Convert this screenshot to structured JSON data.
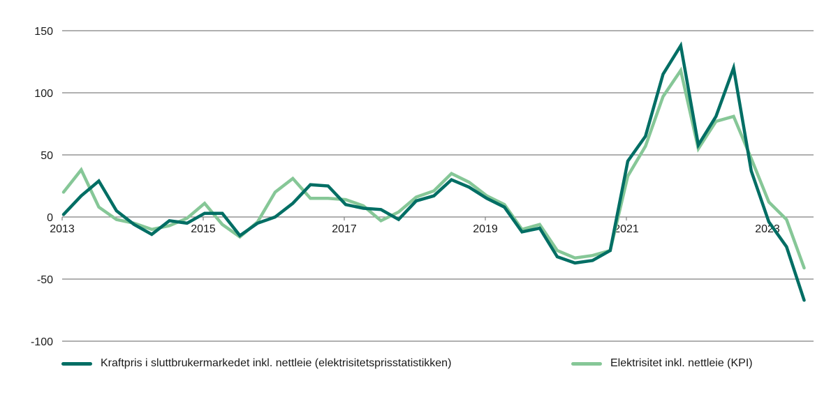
{
  "chart_data": {
    "type": "line",
    "title": "",
    "xlabel": "",
    "ylabel": "",
    "ylim": [
      -100,
      150
    ],
    "yticks": [
      150,
      100,
      50,
      0,
      -50,
      -100
    ],
    "xtick_labels": [
      "2013",
      "2015",
      "2017",
      "2019",
      "2021",
      "2023"
    ],
    "grid": "horizontal",
    "legend_position": "bottom",
    "x": [
      "2013K1",
      "2013K2",
      "2013K3",
      "2013K4",
      "2014K1",
      "2014K2",
      "2014K3",
      "2014K4",
      "2015K1",
      "2015K2",
      "2015K3",
      "2015K4",
      "2016K1",
      "2016K2",
      "2016K3",
      "2016K4",
      "2017K1",
      "2017K2",
      "2017K3",
      "2017K4",
      "2018K1",
      "2018K2",
      "2018K3",
      "2018K4",
      "2019K1",
      "2019K2",
      "2019K3",
      "2019K4",
      "2020K1",
      "2020K2",
      "2020K3",
      "2020K4",
      "2021K1",
      "2021K2",
      "2021K3",
      "2021K4",
      "2022K1",
      "2022K2",
      "2022K3",
      "2022K4",
      "2023K1",
      "2023K2",
      "2023K3"
    ],
    "series": [
      {
        "name": "Kraftpris i sluttbrukermarkedet inkl. nettleie (elektrisitetsprisstatistikken)",
        "color": "#006e64",
        "values": [
          2,
          17,
          29,
          5,
          -6,
          -14,
          -3,
          -5,
          3,
          3,
          -15,
          -5,
          0,
          11,
          26,
          25,
          10,
          7,
          6,
          -2,
          13,
          17,
          30,
          24,
          15,
          8,
          -12,
          -9,
          -32,
          -37,
          -35,
          -27,
          45,
          65,
          115,
          138,
          58,
          81,
          120,
          37,
          -4,
          -24,
          -67
        ]
      },
      {
        "name": "Elektrisitet inkl. nettleie (KPI)",
        "color": "#86c797",
        "values": [
          20,
          38,
          8,
          -2,
          -5,
          -10,
          -7,
          -1,
          11,
          -6,
          -16,
          -4,
          20,
          31,
          15,
          15,
          14,
          9,
          -3,
          4,
          16,
          21,
          35,
          28,
          17,
          10,
          -10,
          -6,
          -27,
          -33,
          -31,
          -27,
          33,
          57,
          97,
          118,
          55,
          77,
          81,
          47,
          12,
          -2,
          -41
        ]
      }
    ]
  },
  "legend": {
    "items": [
      {
        "label": "Kraftpris i sluttbrukermarkedet inkl. nettleie (elektrisitetsprisstatistikken)",
        "color": "#006e64"
      },
      {
        "label": "Elektrisitet inkl. nettleie (KPI)",
        "color": "#86c797"
      }
    ]
  }
}
